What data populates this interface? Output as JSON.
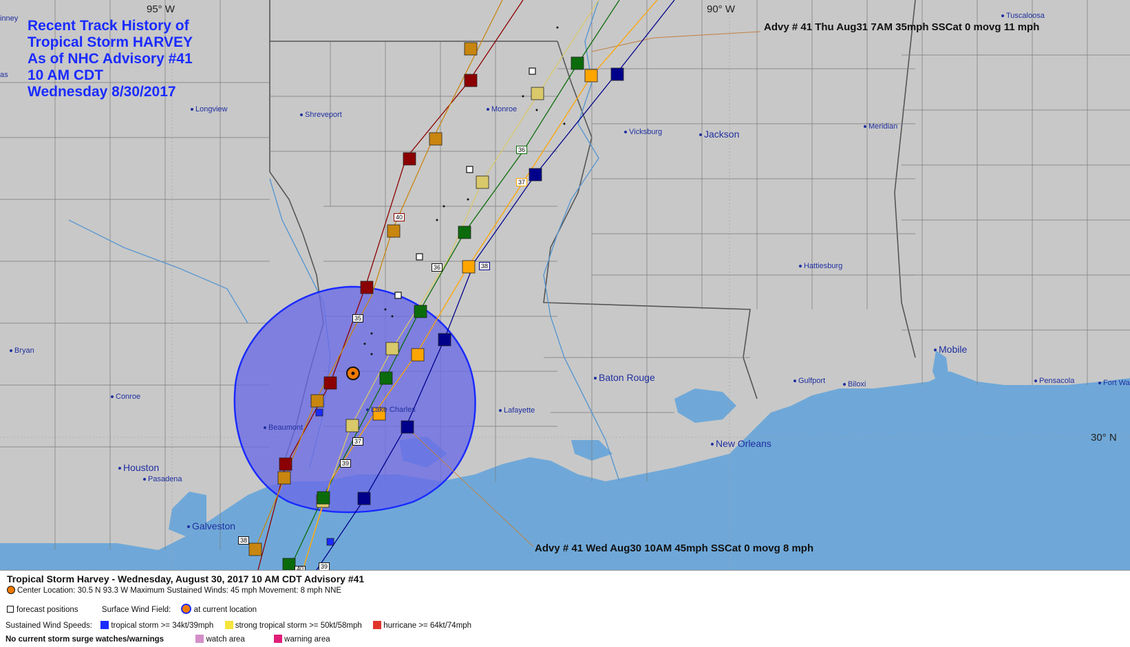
{
  "title": {
    "lines": [
      "Recent Track History of",
      "Tropical Storm HARVEY",
      "As of NHC Advisory #41",
      "10 AM CDT",
      "Wednesday 8/30/2017"
    ]
  },
  "grid_labels": {
    "lon_95": "95° W",
    "lon_90": "90° W",
    "lat_30": "30° N"
  },
  "cities": [
    {
      "name": "Tuscaloosa",
      "size": "small"
    },
    {
      "name": "Longview",
      "size": "small"
    },
    {
      "name": "Shreveport",
      "size": "small"
    },
    {
      "name": "Monroe",
      "size": "small"
    },
    {
      "name": "Vicksburg",
      "size": "small"
    },
    {
      "name": "Jackson",
      "size": "large"
    },
    {
      "name": "Meridian",
      "size": "small"
    },
    {
      "name": "Hattiesburg",
      "size": "small"
    },
    {
      "name": "Bryan",
      "size": "small"
    },
    {
      "name": "Mobile",
      "size": "large"
    },
    {
      "name": "Baton Rouge",
      "size": "large"
    },
    {
      "name": "Gulfport",
      "size": "small"
    },
    {
      "name": "Biloxi",
      "size": "small"
    },
    {
      "name": "Pensacola",
      "size": "small"
    },
    {
      "name": "Fort Wa",
      "size": "small"
    },
    {
      "name": "Conroe",
      "size": "small"
    },
    {
      "name": "Lake Charles",
      "size": "small"
    },
    {
      "name": "Lafayette",
      "size": "small"
    },
    {
      "name": "Beaumont",
      "size": "small"
    },
    {
      "name": "New Orleans",
      "size": "large"
    },
    {
      "name": "Houston",
      "size": "large"
    },
    {
      "name": "Pasadena",
      "size": "small"
    },
    {
      "name": "Galveston",
      "size": "large"
    },
    {
      "name": "inney",
      "size": "small"
    },
    {
      "name": "as",
      "size": "small"
    }
  ],
  "advisory_labels": {
    "forecast": "Advy # 41 Thu Aug31 7AM  35mph SSCat 0 movg 11 mph",
    "current": "Advy # 41 Wed Aug30 10AM  45mph SSCat 0 movg 8 mph"
  },
  "advisory_numbers": [
    "35",
    "36",
    "37",
    "38",
    "39",
    "40",
    "36",
    "37",
    "38",
    "39",
    "40",
    "38",
    "39",
    "36"
  ],
  "colors": {
    "land": "#c8c8c8",
    "water": "#6fa8d8",
    "wind_field": "#6a6ae6",
    "wind_field_border": "#1a2bff",
    "tropical_storm": "#1a2bff",
    "strong_tropical_storm": "#f5e43b",
    "hurricane": "#e0352b",
    "watch": "#d48fc8",
    "warning": "#e01e78",
    "current_location": "#f07a00",
    "title": "#1a2bff"
  },
  "track_colors": [
    "#8b0000",
    "#c8860f",
    "#d9c96a",
    "#0b6b0b",
    "#ffa500",
    "#00008b"
  ],
  "legend": {
    "title": "Tropical Storm Harvey  -  Wednesday, August 30, 2017  10 AM CDT   Advisory #41",
    "center_location": "Center Location: 30.5 N  93.3 W   Maximum Sustained Winds: 45 mph  Movement: 8 mph NNE",
    "forecast_positions": "forecast positions",
    "surface_wind_field": "Surface Wind Field:",
    "at_current_location": "at current location",
    "sustained_wind_speeds": "Sustained Wind Speeds:",
    "tropical_storm": "tropical storm >= 34kt/39mph",
    "strong_tropical_storm": "strong tropical storm >= 50kt/58mph",
    "hurricane": "hurricane >= 64kt/74mph",
    "no_surge": "No current storm surge watches/warnings",
    "watch_area": "watch area",
    "warning_area": "warning area"
  }
}
